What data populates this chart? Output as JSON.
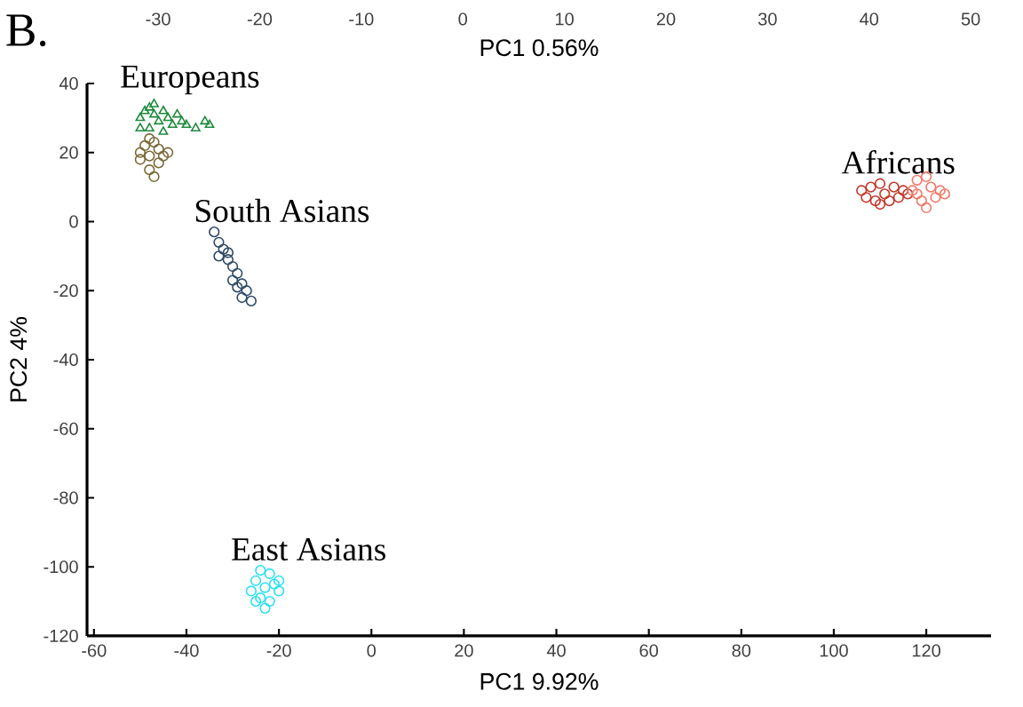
{
  "chart_data": {
    "type": "scatter",
    "xlabel": "PC1 9.92%",
    "ylabel": "PC2 4%",
    "x2label": "PC1 0.56%",
    "xlim": [
      -61.5,
      134
    ],
    "ylim": [
      -120,
      40
    ],
    "x2lim": [
      -37,
      52
    ],
    "xticks": [
      -60,
      -40,
      -20,
      0,
      20,
      40,
      60,
      80,
      100,
      120
    ],
    "yticks": [
      -120,
      -100,
      -80,
      -60,
      -40,
      -20,
      0,
      20,
      40
    ],
    "x2ticks": [
      -30,
      -20,
      -10,
      0,
      10,
      20,
      30,
      40,
      50
    ],
    "annotations": [
      "B."
    ],
    "series": [
      {
        "name": "Europeans",
        "color": "#1e8a3c",
        "marker": "triangle",
        "x": [
          -50,
          -49,
          -48,
          -47,
          -46,
          -45,
          -44,
          -43,
          -42,
          -41,
          -48,
          -50,
          -45,
          -40,
          -38,
          -36,
          -35,
          -47
        ],
        "values": [
          30,
          32,
          33,
          31,
          29,
          32,
          30,
          28,
          31,
          29,
          27,
          27,
          26,
          28,
          27,
          29,
          28,
          34
        ]
      },
      {
        "color": "#7a6a3a",
        "marker": "circle",
        "x": [
          -49,
          -47,
          -46,
          -48,
          -50,
          -46,
          -48,
          -47,
          -45,
          -50,
          -44,
          -48
        ],
        "values": [
          22,
          23,
          21,
          19,
          18,
          17,
          15,
          13,
          19,
          20,
          20,
          24
        ]
      },
      {
        "name": "South Asians",
        "color": "#2f4a66",
        "marker": "circle",
        "x": [
          -34,
          -33,
          -32,
          -33,
          -31,
          -30,
          -29,
          -30,
          -28,
          -27,
          -28,
          -26,
          -31,
          -29
        ],
        "values": [
          -3,
          -6,
          -8,
          -10,
          -11,
          -13,
          -15,
          -17,
          -18,
          -20,
          -22,
          -23,
          -9,
          -19
        ]
      },
      {
        "name": "East Asians",
        "color": "#2ee0f0",
        "marker": "circle",
        "x": [
          -24,
          -22,
          -21,
          -20,
          -23,
          -25,
          -26,
          -24,
          -22,
          -23,
          -20,
          -25
        ],
        "values": [
          -101,
          -102,
          -105,
          -107,
          -106,
          -104,
          -107,
          -109,
          -110,
          -112,
          -104,
          -110
        ]
      },
      {
        "name": "Africans",
        "color": "#c0392b",
        "marker": "circle",
        "x": [
          106,
          107,
          108,
          109,
          110,
          111,
          112,
          113,
          114,
          115,
          116,
          110
        ],
        "values": [
          9,
          7,
          10,
          6,
          11,
          8,
          6,
          10,
          7,
          9,
          8,
          5
        ]
      },
      {
        "color": "#f07a6a",
        "marker": "circle",
        "x": [
          117,
          118,
          119,
          120,
          121,
          122,
          123,
          124,
          120,
          118
        ],
        "values": [
          9,
          12,
          6,
          13,
          10,
          7,
          9,
          8,
          4,
          8
        ]
      }
    ]
  }
}
